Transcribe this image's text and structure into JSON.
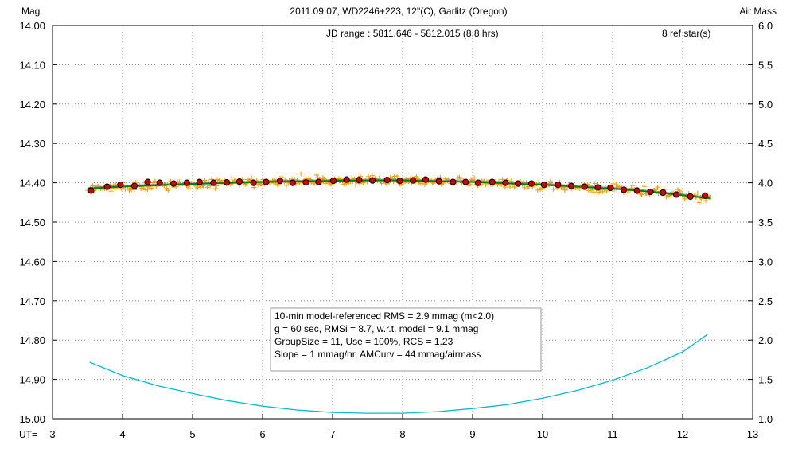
{
  "chart_data": {
    "type": "scatter",
    "title": "2011.09.07, WD2246+223, 12\"(C), Garlitz (Oregon)",
    "ylabel_left": "Mag",
    "ylabel_right": "Air Mass",
    "xlabel": "UT=",
    "jd_range_text": "JD range : 5811.646 - 5812.015 (8.8 hrs)",
    "ref_stars_text": "8 ref star(s)",
    "xlim": [
      3,
      13
    ],
    "ylim_mag": [
      14.0,
      15.0
    ],
    "ylim_airmass": [
      1.0,
      6.0
    ],
    "x_ticks": [
      "3",
      "4",
      "5",
      "6",
      "7",
      "8",
      "9",
      "10",
      "11",
      "12",
      "13"
    ],
    "y_ticks_left": [
      "14.00",
      "14.10",
      "14.20",
      "14.30",
      "14.40",
      "14.50",
      "14.60",
      "14.70",
      "14.80",
      "14.90",
      "15.00"
    ],
    "y_ticks_right": [
      "6.0",
      "5.5",
      "5.0",
      "4.5",
      "4.0",
      "3.5",
      "3.0",
      "2.5",
      "2.0",
      "1.5",
      "1.0"
    ],
    "grid": true,
    "stats_box": [
      "10-min model-referenced RMS = 2.9 mmag (m<2.0)",
      "g = 60 sec, RMSi = 8.7, w.r.t. model = 9.1 mmag",
      "GroupSize = 11, Use = 100%, RCS = 1.23",
      "Slope = 1 mmag/hr, AMCurv = 44 mmag/airmass"
    ],
    "series": [
      {
        "role": "group averages",
        "color": "#cc0000",
        "points": [
          [
            3.55,
            14.42
          ],
          [
            3.78,
            14.41
          ],
          [
            3.97,
            14.405
          ],
          [
            4.17,
            14.408
          ],
          [
            4.36,
            14.398
          ],
          [
            4.53,
            14.4
          ],
          [
            4.73,
            14.402
          ],
          [
            4.92,
            14.4
          ],
          [
            5.1,
            14.398
          ],
          [
            5.3,
            14.4
          ],
          [
            5.49,
            14.399
          ],
          [
            5.67,
            14.397
          ],
          [
            5.87,
            14.4
          ],
          [
            6.05,
            14.398
          ],
          [
            6.25,
            14.395
          ],
          [
            6.43,
            14.4
          ],
          [
            6.62,
            14.399
          ],
          [
            6.8,
            14.398
          ],
          [
            7.01,
            14.395
          ],
          [
            7.2,
            14.392
          ],
          [
            7.38,
            14.393
          ],
          [
            7.57,
            14.394
          ],
          [
            7.78,
            14.393
          ],
          [
            7.96,
            14.395
          ],
          [
            8.15,
            14.394
          ],
          [
            8.33,
            14.392
          ],
          [
            8.52,
            14.396
          ],
          [
            8.72,
            14.398
          ],
          [
            8.9,
            14.398
          ],
          [
            9.08,
            14.4
          ],
          [
            9.28,
            14.398
          ],
          [
            9.47,
            14.4
          ],
          [
            9.65,
            14.402
          ],
          [
            9.84,
            14.402
          ],
          [
            10.02,
            14.405
          ],
          [
            10.22,
            14.405
          ],
          [
            10.41,
            14.408
          ],
          [
            10.6,
            14.41
          ],
          [
            10.79,
            14.412
          ],
          [
            10.97,
            14.413
          ],
          [
            11.16,
            14.418
          ],
          [
            11.35,
            14.42
          ],
          [
            11.54,
            14.423
          ],
          [
            11.72,
            14.425
          ],
          [
            11.91,
            14.43
          ],
          [
            12.11,
            14.435
          ],
          [
            12.32,
            14.433
          ]
        ]
      },
      {
        "role": "fitted model",
        "color": "#008000",
        "x": [
          3.5,
          4.0,
          5.0,
          6.0,
          7.0,
          7.5,
          8.0,
          9.0,
          10.0,
          11.0,
          11.5,
          12.0,
          12.4
        ],
        "y": [
          14.415,
          14.41,
          14.403,
          14.398,
          14.395,
          14.394,
          14.394,
          14.398,
          14.405,
          14.415,
          14.422,
          14.432,
          14.44
        ]
      },
      {
        "role": "air mass",
        "axis": "right",
        "color": "#00bcd4",
        "x": [
          3.53,
          4.0,
          4.5,
          5.0,
          5.5,
          6.0,
          6.5,
          7.0,
          7.5,
          8.0,
          8.5,
          9.0,
          9.5,
          10.0,
          10.5,
          11.0,
          11.5,
          12.0,
          12.35
        ],
        "y": [
          1.72,
          1.55,
          1.42,
          1.32,
          1.23,
          1.16,
          1.11,
          1.08,
          1.07,
          1.07,
          1.09,
          1.13,
          1.18,
          1.26,
          1.36,
          1.49,
          1.65,
          1.85,
          2.07
        ]
      },
      {
        "role": "individual measurements",
        "color": "#ff9900",
        "x_start": 3.5,
        "x_end": 12.4,
        "count": 480,
        "scatter_rms_mag": 0.0087
      }
    ]
  }
}
